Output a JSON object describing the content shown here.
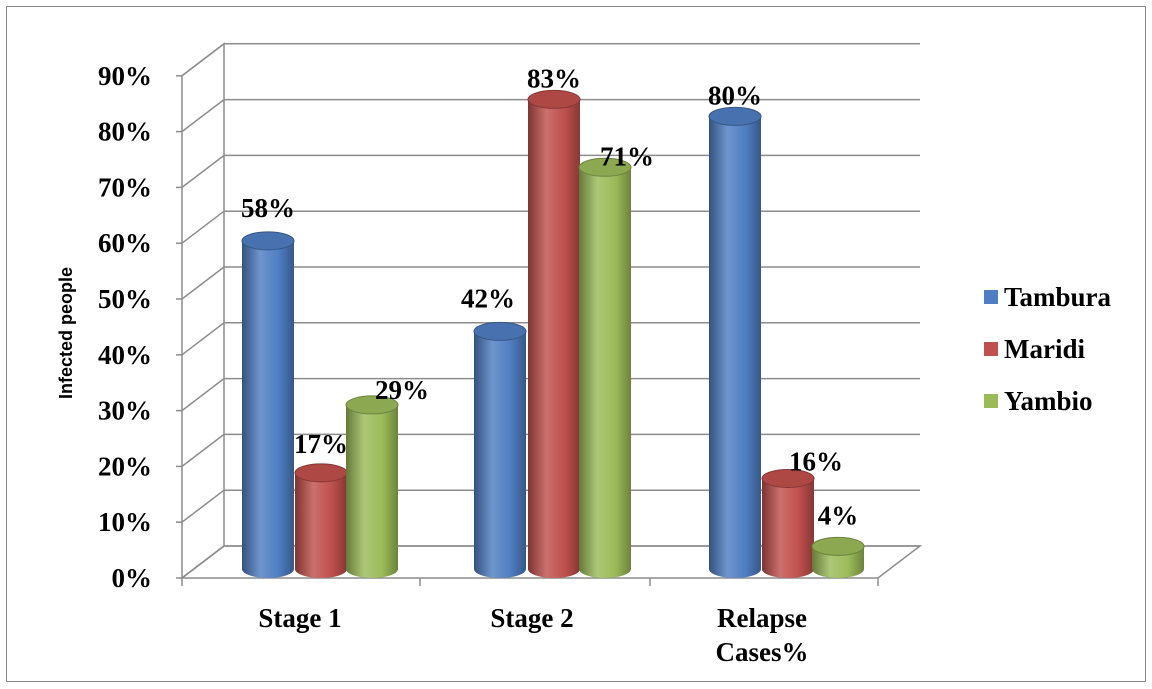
{
  "chart_data": {
    "type": "bar",
    "title": "",
    "xlabel": "",
    "ylabel": "Infected people",
    "categories": [
      "Stage 1",
      "Stage 2",
      "Relapse Cases%"
    ],
    "series": [
      {
        "name": "Tambura",
        "values": [
          58,
          42,
          80
        ],
        "labels": [
          "58%",
          "42%",
          "80%"
        ],
        "color": "#4f7ec2"
      },
      {
        "name": "Maridi",
        "values": [
          17,
          83,
          16
        ],
        "labels": [
          "17%",
          "83%",
          "16%"
        ],
        "color": "#c0504d"
      },
      {
        "name": "Yambio",
        "values": [
          29,
          71,
          4
        ],
        "labels": [
          "29%",
          "71%",
          "4%"
        ],
        "color": "#9bbb59"
      }
    ],
    "ylim": [
      0,
      90
    ],
    "yticks": [
      "0%",
      "10%",
      "20%",
      "30%",
      "40%",
      "50%",
      "60%",
      "70%",
      "80%",
      "90%"
    ],
    "grid": true,
    "legend_position": "right",
    "style": "3d-cylinder"
  }
}
